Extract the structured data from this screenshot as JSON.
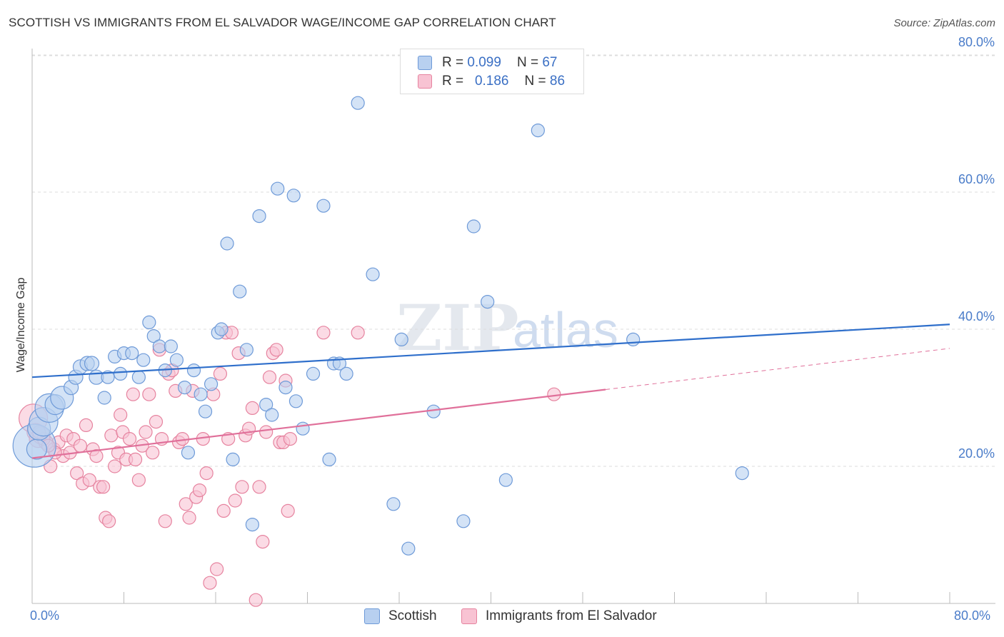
{
  "title": "SCOTTISH VS IMMIGRANTS FROM EL SALVADOR WAGE/INCOME GAP CORRELATION CHART",
  "source": "Source: ZipAtlas.com",
  "watermark": {
    "zip": "ZIP",
    "atlas": "atlas"
  },
  "legend_top": [
    {
      "r_label": "R =",
      "r_value": "0.099",
      "n_label": "N =",
      "n_value": "67"
    },
    {
      "r_label": "R =",
      "r_value": "0.186",
      "n_label": "N =",
      "n_value": "86"
    }
  ],
  "colors": {
    "scottish_fill": "#b8d0f0",
    "scottish_stroke": "#6e9ad8",
    "scottish_line": "#2f6fcb",
    "salvador_fill": "#f8c3d3",
    "salvador_stroke": "#e6839f",
    "salvador_line": "#e0709a",
    "tick_text": "#4a7cc9",
    "grid": "#dddddd"
  },
  "chart_data": {
    "type": "scatter",
    "title": "SCOTTISH VS IMMIGRANTS FROM EL SALVADOR WAGE/INCOME GAP CORRELATION CHART",
    "xlabel": "",
    "ylabel": "Wage/Income Gap",
    "xlim": [
      0,
      80
    ],
    "ylim": [
      0,
      82
    ],
    "x_tick_labels": [
      "0.0%",
      "80.0%"
    ],
    "y_ticks": [
      {
        "value": 20,
        "label": "20.0%"
      },
      {
        "value": 40,
        "label": "40.0%"
      },
      {
        "value": 60,
        "label": "60.0%"
      },
      {
        "value": 80,
        "label": "80.0%"
      }
    ],
    "legend_position": "bottom",
    "series": [
      {
        "name": "Scottish",
        "R": 0.099,
        "N": 67,
        "trend": {
          "x0": 0,
          "y0": 33.0,
          "x1": 80,
          "y1": 40.7,
          "dashed_from": null
        },
        "points": [
          [
            0.2,
            23.0,
            30
          ],
          [
            0.4,
            22.5,
            14
          ],
          [
            0.6,
            25.5,
            16
          ],
          [
            1.0,
            26.5,
            20
          ],
          [
            1.5,
            28.5,
            20
          ],
          [
            2.0,
            29.0,
            14
          ],
          [
            2.6,
            30.0,
            16
          ],
          [
            3.4,
            31.5,
            10
          ],
          [
            3.8,
            33.0,
            10
          ],
          [
            4.2,
            34.5,
            10
          ],
          [
            4.8,
            35.0,
            10
          ],
          [
            5.2,
            35.0,
            10
          ],
          [
            5.6,
            33.0,
            10
          ],
          [
            6.3,
            30.0,
            9
          ],
          [
            6.6,
            33.0,
            9
          ],
          [
            7.2,
            36.0,
            9
          ],
          [
            7.7,
            33.5,
            9
          ],
          [
            8.0,
            36.5,
            9
          ],
          [
            8.7,
            36.5,
            9
          ],
          [
            9.3,
            33.0,
            9
          ],
          [
            9.7,
            35.5,
            9
          ],
          [
            10.2,
            41.0,
            9
          ],
          [
            10.6,
            39.0,
            9
          ],
          [
            11.1,
            37.5,
            9
          ],
          [
            11.6,
            34.0,
            9
          ],
          [
            12.1,
            37.5,
            9
          ],
          [
            12.6,
            35.5,
            9
          ],
          [
            13.3,
            31.5,
            9
          ],
          [
            13.6,
            22.0,
            9
          ],
          [
            14.1,
            34.0,
            9
          ],
          [
            14.7,
            30.5,
            9
          ],
          [
            15.1,
            28.0,
            9
          ],
          [
            15.6,
            32.0,
            9
          ],
          [
            16.2,
            39.5,
            9
          ],
          [
            16.5,
            40.0,
            9
          ],
          [
            17.0,
            52.5,
            9
          ],
          [
            17.5,
            21.0,
            9
          ],
          [
            18.1,
            45.5,
            9
          ],
          [
            18.7,
            37.0,
            9
          ],
          [
            19.2,
            11.5,
            9
          ],
          [
            19.8,
            56.5,
            9
          ],
          [
            20.4,
            29.0,
            9
          ],
          [
            20.9,
            27.5,
            9
          ],
          [
            21.4,
            60.5,
            9
          ],
          [
            22.1,
            31.5,
            9
          ],
          [
            22.8,
            59.5,
            9
          ],
          [
            23.0,
            29.5,
            9
          ],
          [
            23.6,
            25.5,
            9
          ],
          [
            24.5,
            33.5,
            9
          ],
          [
            25.4,
            58.0,
            9
          ],
          [
            25.9,
            21.0,
            9
          ],
          [
            26.3,
            35.0,
            9
          ],
          [
            26.8,
            35.0,
            9
          ],
          [
            27.4,
            33.5,
            9
          ],
          [
            28.4,
            73.0,
            9
          ],
          [
            29.7,
            48.0,
            9
          ],
          [
            31.5,
            14.5,
            9
          ],
          [
            32.2,
            38.5,
            9
          ],
          [
            32.8,
            8.0,
            9
          ],
          [
            35.0,
            28.0,
            9
          ],
          [
            37.6,
            12.0,
            9
          ],
          [
            38.5,
            55.0,
            9
          ],
          [
            39.7,
            44.0,
            9
          ],
          [
            41.3,
            18.0,
            9
          ],
          [
            44.1,
            69.0,
            9
          ],
          [
            52.4,
            38.5,
            9
          ],
          [
            61.9,
            19.0,
            9
          ]
        ]
      },
      {
        "name": "Immigrants from El Salvador",
        "R": 0.186,
        "N": 86,
        "trend": {
          "x0": 0,
          "y0": 21.2,
          "x1": 80,
          "y1": 37.2,
          "dashed_from": 50
        },
        "points": [
          [
            0.1,
            27.0,
            20
          ],
          [
            0.3,
            25.0,
            12
          ],
          [
            0.5,
            24.0,
            12
          ],
          [
            0.8,
            24.5,
            12
          ],
          [
            1.2,
            23.5,
            10
          ],
          [
            1.6,
            20.0,
            9
          ],
          [
            1.9,
            22.5,
            9
          ],
          [
            2.3,
            23.5,
            9
          ],
          [
            2.7,
            21.5,
            9
          ],
          [
            3.0,
            24.5,
            9
          ],
          [
            3.3,
            22.0,
            9
          ],
          [
            3.6,
            24.0,
            9
          ],
          [
            3.9,
            19.0,
            9
          ],
          [
            4.2,
            23.0,
            9
          ],
          [
            4.4,
            17.5,
            9
          ],
          [
            4.7,
            26.0,
            9
          ],
          [
            5.0,
            18.0,
            9
          ],
          [
            5.3,
            22.5,
            9
          ],
          [
            5.6,
            21.5,
            9
          ],
          [
            5.9,
            17.0,
            9
          ],
          [
            6.2,
            17.0,
            9
          ],
          [
            6.4,
            12.5,
            9
          ],
          [
            6.7,
            12.0,
            9
          ],
          [
            6.9,
            24.5,
            9
          ],
          [
            7.2,
            20.0,
            9
          ],
          [
            7.5,
            22.0,
            9
          ],
          [
            7.7,
            27.5,
            9
          ],
          [
            7.9,
            25.0,
            9
          ],
          [
            8.2,
            21.0,
            9
          ],
          [
            8.5,
            24.0,
            9
          ],
          [
            8.8,
            30.5,
            9
          ],
          [
            9.0,
            21.0,
            9
          ],
          [
            9.3,
            18.0,
            9
          ],
          [
            9.6,
            23.0,
            9
          ],
          [
            9.9,
            25.0,
            9
          ],
          [
            10.2,
            30.5,
            9
          ],
          [
            10.5,
            22.0,
            9
          ],
          [
            10.8,
            26.5,
            9
          ],
          [
            11.1,
            37.0,
            9
          ],
          [
            11.3,
            24.0,
            9
          ],
          [
            11.6,
            12.0,
            9
          ],
          [
            11.9,
            33.5,
            9
          ],
          [
            12.2,
            34.0,
            9
          ],
          [
            12.5,
            31.0,
            9
          ],
          [
            12.8,
            23.5,
            9
          ],
          [
            13.1,
            24.0,
            9
          ],
          [
            13.4,
            14.5,
            9
          ],
          [
            13.7,
            12.5,
            9
          ],
          [
            14.0,
            31.0,
            9
          ],
          [
            14.3,
            15.5,
            9
          ],
          [
            14.6,
            16.5,
            9
          ],
          [
            14.9,
            24.0,
            9
          ],
          [
            15.2,
            19.0,
            9
          ],
          [
            15.5,
            3.0,
            9
          ],
          [
            15.8,
            30.5,
            9
          ],
          [
            16.1,
            5.0,
            9
          ],
          [
            16.4,
            33.5,
            9
          ],
          [
            16.7,
            13.5,
            9
          ],
          [
            16.9,
            39.5,
            9
          ],
          [
            17.1,
            24.0,
            9
          ],
          [
            17.4,
            39.5,
            9
          ],
          [
            17.7,
            15.0,
            9
          ],
          [
            18.0,
            36.5,
            9
          ],
          [
            18.3,
            17.0,
            9
          ],
          [
            18.6,
            24.5,
            9
          ],
          [
            18.9,
            25.5,
            9
          ],
          [
            19.2,
            28.5,
            9
          ],
          [
            19.5,
            0.5,
            9
          ],
          [
            19.8,
            17.0,
            9
          ],
          [
            20.1,
            9.0,
            9
          ],
          [
            20.4,
            25.0,
            9
          ],
          [
            20.7,
            33.0,
            9
          ],
          [
            21.0,
            36.5,
            9
          ],
          [
            21.3,
            37.0,
            9
          ],
          [
            21.6,
            23.5,
            9
          ],
          [
            21.9,
            23.5,
            9
          ],
          [
            22.1,
            32.5,
            9
          ],
          [
            22.3,
            13.5,
            9
          ],
          [
            22.5,
            24.0,
            9
          ],
          [
            25.4,
            39.5,
            9
          ],
          [
            28.4,
            39.5,
            9
          ],
          [
            45.5,
            30.5,
            9
          ],
          [
            1.0,
            24.0,
            9
          ],
          [
            2.0,
            22.0,
            9
          ],
          [
            0.6,
            25.0,
            9
          ],
          [
            1.4,
            23.0,
            9
          ]
        ]
      }
    ]
  },
  "legend_bottom": [
    {
      "label": "Scottish"
    },
    {
      "label": "Immigrants from El Salvador"
    }
  ]
}
